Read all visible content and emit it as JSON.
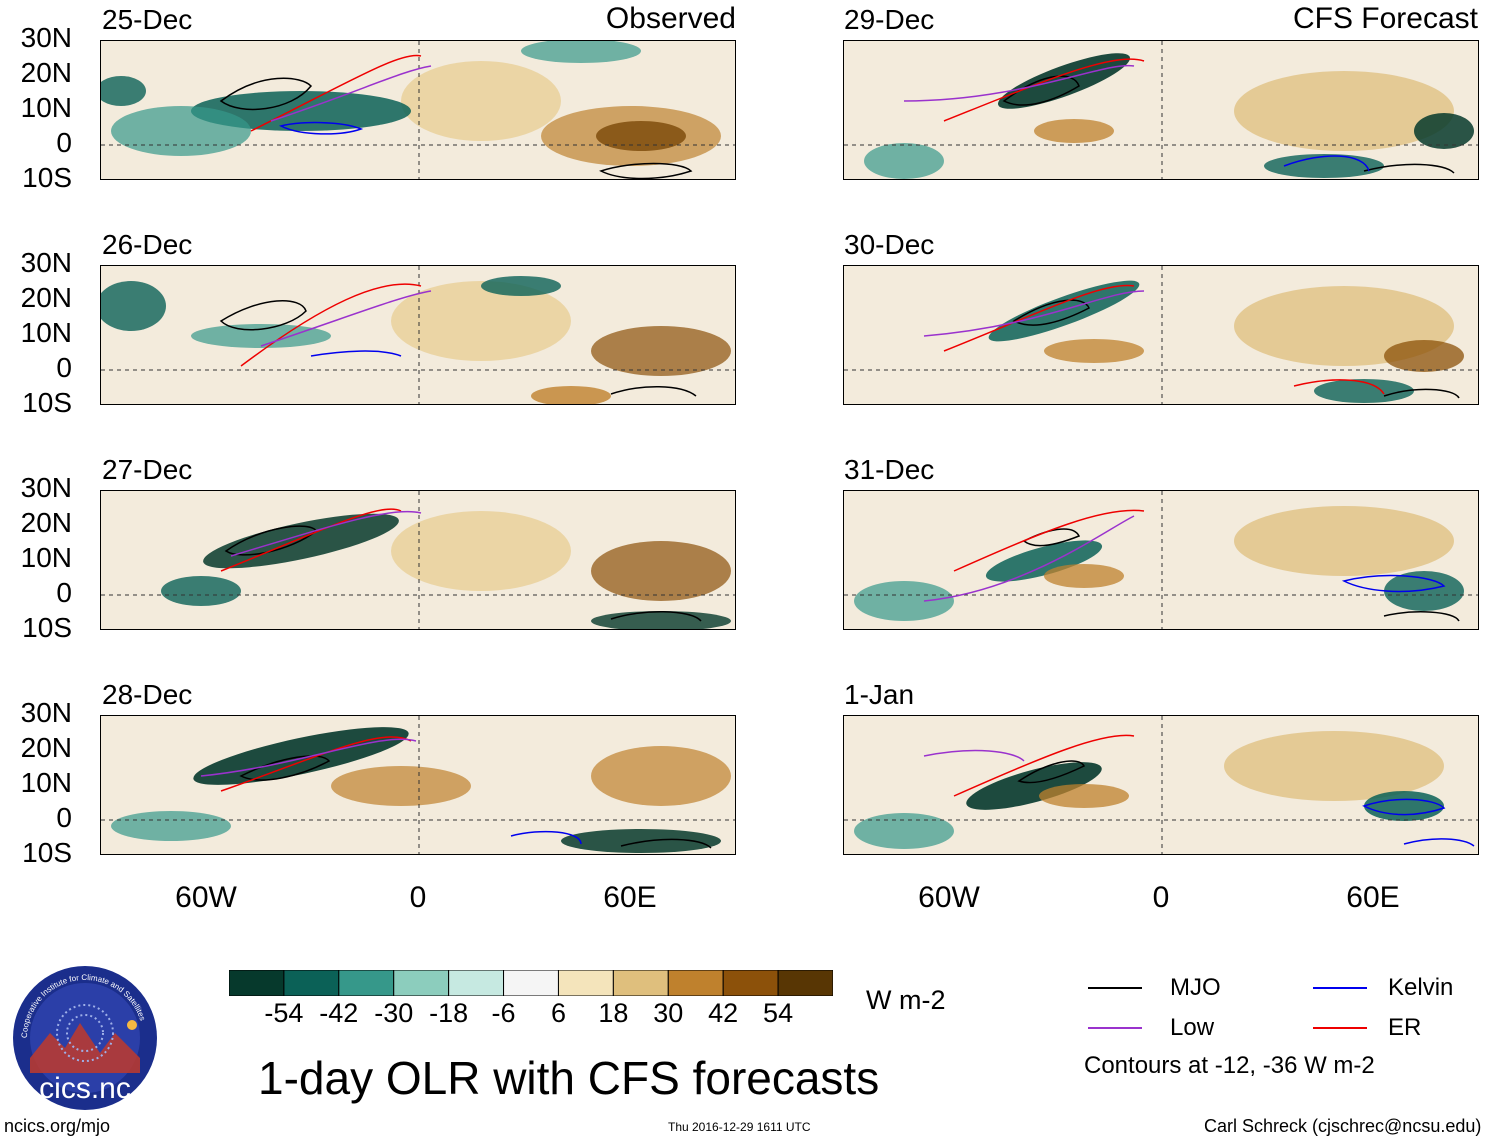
{
  "left_header": "Observed",
  "right_header": "CFS Forecast",
  "observed_panels": [
    "25-Dec",
    "26-Dec",
    "27-Dec",
    "28-Dec"
  ],
  "forecast_panels": [
    "29-Dec",
    "30-Dec",
    "31-Dec",
    "1-Jan"
  ],
  "lat_labels": [
    "30N",
    "20N",
    "10N",
    "0",
    "10S"
  ],
  "lon_labels": [
    "60W",
    "0",
    "60E"
  ],
  "colorbar": {
    "ticks": [
      "-54",
      "-42",
      "-30",
      "-18",
      "-6",
      "6",
      "18",
      "30",
      "42",
      "54"
    ],
    "colors": [
      "#06392c",
      "#0b6157",
      "#36988a",
      "#8ccdbd",
      "#c6e9e1",
      "#f5f5f5",
      "#f4e4bb",
      "#dfbf7d",
      "#bf812d",
      "#8c510a",
      "#583604"
    ],
    "units": "W m-2"
  },
  "legend": {
    "items": [
      {
        "label": "MJO",
        "color": "#000000"
      },
      {
        "label": "Kelvin",
        "color": "#0000ee"
      },
      {
        "label": "Low",
        "color": "#9a32cd"
      },
      {
        "label": "ER",
        "color": "#ee0000"
      }
    ],
    "note": "Contours at -12, -36 W m-2"
  },
  "main_title": "1-day OLR with CFS forecasts",
  "logo_text": "cics.nc",
  "logo_ring_text": "Cooperative Institute for Climate and Satellites",
  "footer": {
    "url": "ncics.org/mjo",
    "timestamp": "Thu 2016-12-29 1611 UTC",
    "author": "Carl Schreck (cjschrec@ncsu.edu)"
  }
}
